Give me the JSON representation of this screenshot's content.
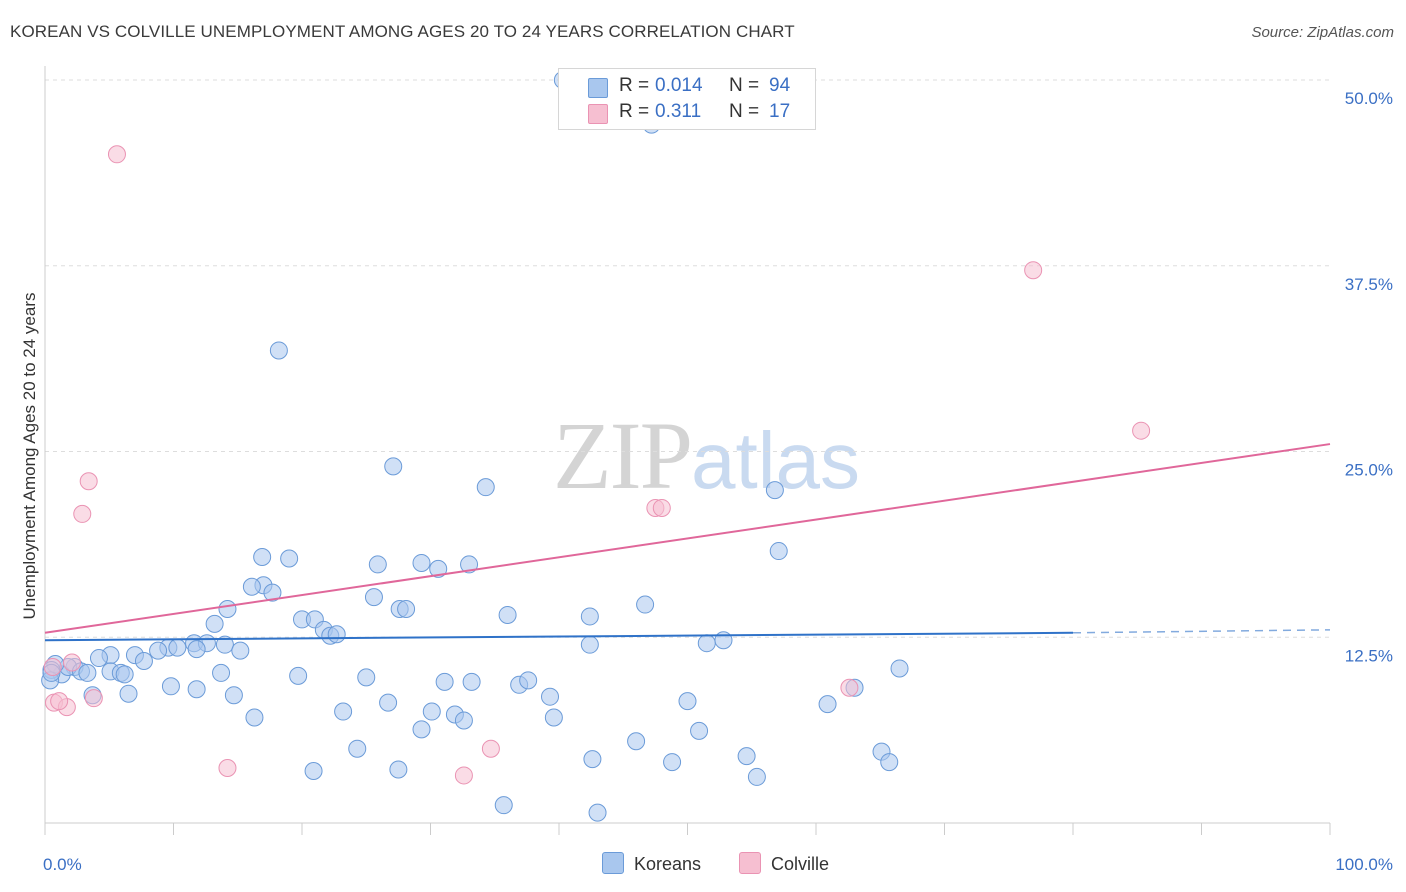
{
  "title": "KOREAN VS COLVILLE UNEMPLOYMENT AMONG AGES 20 TO 24 YEARS CORRELATION CHART",
  "source": "Source: ZipAtlas.com",
  "watermark": {
    "zip": "ZIP",
    "atlas": "atlas"
  },
  "colors": {
    "koreans_fill": "#a9c7ee",
    "koreans_stroke": "#6b9bd8",
    "koreans_line": "#2f72c8",
    "colville_fill": "#f6bfd1",
    "colville_stroke": "#ea93b3",
    "colville_line": "#e0679a",
    "tick_label": "#3a6fc4",
    "grid": "#dddddd"
  },
  "legend_top": [
    {
      "r_label": "R =",
      "r_value": "0.014",
      "n_label": "N =",
      "n_value": "94"
    },
    {
      "r_label": "R =",
      "r_value": "0.311",
      "n_label": "N =",
      "n_value": "17"
    }
  ],
  "legend_bottom": [
    "Koreans",
    "Colville"
  ],
  "chart_data": {
    "type": "scatter",
    "title": "KOREAN VS COLVILLE UNEMPLOYMENT AMONG AGES 20 TO 24 YEARS CORRELATION CHART",
    "xlabel": "",
    "ylabel": "Unemployment Among Ages 20 to 24 years",
    "xlim": [
      0,
      100
    ],
    "ylim": [
      0,
      50
    ],
    "x_tick_labels": [
      "0.0%",
      "100.0%"
    ],
    "y_ticks": [
      12.5,
      25.0,
      37.5,
      50.0
    ],
    "y_tick_labels": [
      "12.5%",
      "25.0%",
      "37.5%",
      "50.0%"
    ],
    "grid": true,
    "series": [
      {
        "name": "Koreans",
        "R": 0.014,
        "N": 94,
        "trend": {
          "x": [
            0,
            80
          ],
          "y": [
            12.3,
            12.8
          ],
          "dashed_extension_to_x": 100,
          "dashed_end_y": 13.0
        },
        "points": [
          [
            40.3,
            50.0
          ],
          [
            47.2,
            47.0
          ],
          [
            18.2,
            31.8
          ],
          [
            27.1,
            24.0
          ],
          [
            34.3,
            22.6
          ],
          [
            56.8,
            22.4
          ],
          [
            57.1,
            18.3
          ],
          [
            16.9,
            17.9
          ],
          [
            19.0,
            17.8
          ],
          [
            25.9,
            17.4
          ],
          [
            29.3,
            17.5
          ],
          [
            30.6,
            17.1
          ],
          [
            33.0,
            17.4
          ],
          [
            17.0,
            16.0
          ],
          [
            16.1,
            15.9
          ],
          [
            17.7,
            15.5
          ],
          [
            25.6,
            15.2
          ],
          [
            14.2,
            14.4
          ],
          [
            27.6,
            14.4
          ],
          [
            28.1,
            14.4
          ],
          [
            36.0,
            14.0
          ],
          [
            46.7,
            14.7
          ],
          [
            42.4,
            13.9
          ],
          [
            20.0,
            13.7
          ],
          [
            21.0,
            13.7
          ],
          [
            13.2,
            13.4
          ],
          [
            21.7,
            13.0
          ],
          [
            22.2,
            12.6
          ],
          [
            22.7,
            12.7
          ],
          [
            11.6,
            12.1
          ],
          [
            12.6,
            12.1
          ],
          [
            14.0,
            12.0
          ],
          [
            15.2,
            11.6
          ],
          [
            9.6,
            11.8
          ],
          [
            10.3,
            11.8
          ],
          [
            11.8,
            11.7
          ],
          [
            8.8,
            11.6
          ],
          [
            5.1,
            11.3
          ],
          [
            4.2,
            11.1
          ],
          [
            7.0,
            11.3
          ],
          [
            7.7,
            10.9
          ],
          [
            2.3,
            10.5
          ],
          [
            1.3,
            10.0
          ],
          [
            1.8,
            10.5
          ],
          [
            2.8,
            10.2
          ],
          [
            3.3,
            10.1
          ],
          [
            5.1,
            10.2
          ],
          [
            5.9,
            10.1
          ],
          [
            6.2,
            10.0
          ],
          [
            0.8,
            10.7
          ],
          [
            0.5,
            10.3
          ],
          [
            0.4,
            9.6
          ],
          [
            13.7,
            10.1
          ],
          [
            19.7,
            9.9
          ],
          [
            25.0,
            9.8
          ],
          [
            31.1,
            9.5
          ],
          [
            33.2,
            9.5
          ],
          [
            36.9,
            9.3
          ],
          [
            37.6,
            9.6
          ],
          [
            42.4,
            12.0
          ],
          [
            51.5,
            12.1
          ],
          [
            52.8,
            12.3
          ],
          [
            66.5,
            10.4
          ],
          [
            9.8,
            9.2
          ],
          [
            11.8,
            9.0
          ],
          [
            6.5,
            8.7
          ],
          [
            3.7,
            8.6
          ],
          [
            14.7,
            8.6
          ],
          [
            39.3,
            8.5
          ],
          [
            50.0,
            8.2
          ],
          [
            26.7,
            8.1
          ],
          [
            60.9,
            8.0
          ],
          [
            63.0,
            9.1
          ],
          [
            23.2,
            7.5
          ],
          [
            30.1,
            7.5
          ],
          [
            31.9,
            7.3
          ],
          [
            16.3,
            7.1
          ],
          [
            39.6,
            7.1
          ],
          [
            32.6,
            6.9
          ],
          [
            29.3,
            6.3
          ],
          [
            50.9,
            6.2
          ],
          [
            46.0,
            5.5
          ],
          [
            24.3,
            5.0
          ],
          [
            42.6,
            4.3
          ],
          [
            54.6,
            4.5
          ],
          [
            65.1,
            4.8
          ],
          [
            65.7,
            4.1
          ],
          [
            48.8,
            4.1
          ],
          [
            20.9,
            3.5
          ],
          [
            27.5,
            3.6
          ],
          [
            55.4,
            3.1
          ],
          [
            35.7,
            1.2
          ],
          [
            43.0,
            0.7
          ],
          [
            0.5,
            10.1
          ]
        ]
      },
      {
        "name": "Colville",
        "R": 0.311,
        "N": 17,
        "trend": {
          "x": [
            0,
            100
          ],
          "y": [
            12.8,
            25.5
          ]
        },
        "points": [
          [
            5.6,
            45.0
          ],
          [
            76.9,
            37.2
          ],
          [
            85.3,
            26.4
          ],
          [
            3.4,
            23.0
          ],
          [
            2.9,
            20.8
          ],
          [
            47.5,
            21.2
          ],
          [
            48.0,
            21.2
          ],
          [
            0.6,
            10.5
          ],
          [
            2.1,
            10.8
          ],
          [
            0.7,
            8.1
          ],
          [
            1.7,
            7.8
          ],
          [
            1.1,
            8.2
          ],
          [
            3.8,
            8.4
          ],
          [
            62.6,
            9.1
          ],
          [
            14.2,
            3.7
          ],
          [
            32.6,
            3.2
          ],
          [
            34.7,
            5.0
          ]
        ]
      }
    ]
  }
}
